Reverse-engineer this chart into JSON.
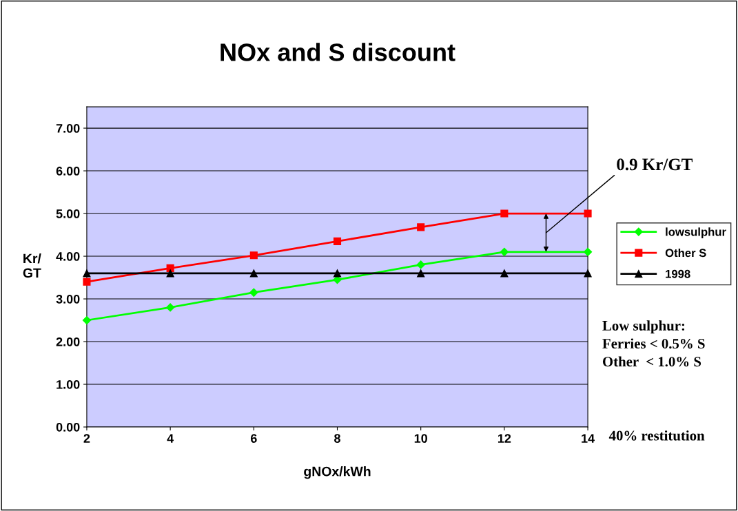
{
  "chart_data": {
    "type": "line",
    "title": "NOx and S discount",
    "xlabel": "gNOx/kWh",
    "ylabel": "Kr/\nGT",
    "x": [
      2,
      4,
      6,
      8,
      10,
      12,
      14
    ],
    "series": [
      {
        "name": "lowsulphur",
        "color": "#00ff00",
        "marker": "diamond",
        "values": [
          2.5,
          2.8,
          3.15,
          3.45,
          3.8,
          4.1,
          4.1
        ]
      },
      {
        "name": "Other S",
        "color": "#ff0000",
        "marker": "square",
        "values": [
          3.4,
          3.72,
          4.02,
          4.35,
          4.68,
          5.0,
          5.0
        ]
      },
      {
        "name": "1998",
        "color": "#000000",
        "marker": "triangle",
        "values": [
          3.6,
          3.6,
          3.6,
          3.6,
          3.6,
          3.6,
          3.6
        ]
      }
    ],
    "xlim": [
      2,
      14
    ],
    "xticks": [
      2,
      4,
      6,
      8,
      10,
      12,
      14
    ],
    "ylim": [
      0,
      7.5
    ],
    "yticks": [
      {
        "value": 0,
        "label": "0.00"
      },
      {
        "value": 1,
        "label": "1.00"
      },
      {
        "value": 2,
        "label": "2.00"
      },
      {
        "value": 3,
        "label": "3.00"
      },
      {
        "value": 4,
        "label": "4.00"
      },
      {
        "value": 5,
        "label": "5.00"
      },
      {
        "value": 6,
        "label": "6.00"
      },
      {
        "value": 7,
        "label": "7.00"
      }
    ],
    "grid": "y",
    "legend": "right",
    "line_style": "solid",
    "annotations": [
      "0.9 Kr/GT",
      "Low sulphur:\nFerries < 0.5% S\nOther  < 1.0% S",
      "40% restitution"
    ]
  }
}
